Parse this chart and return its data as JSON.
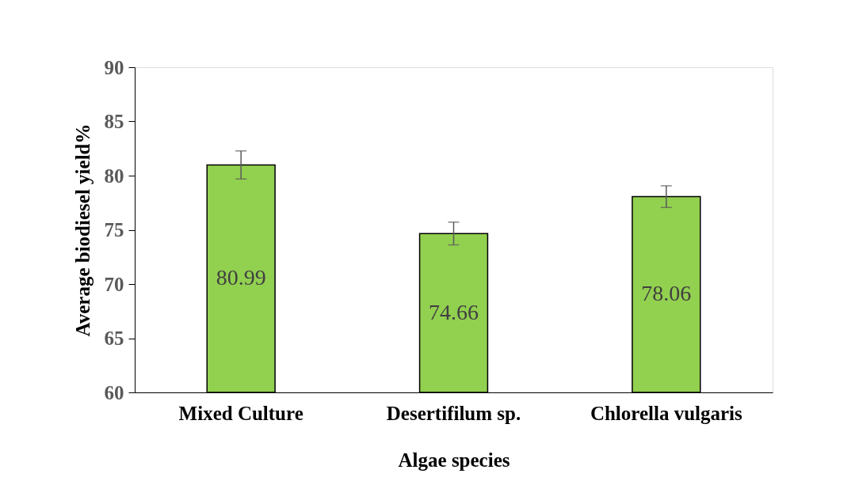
{
  "chart_data": {
    "type": "bar",
    "xlabel": "Algae species",
    "ylabel": "Average biodiesel yield%",
    "categories": [
      "Mixed Culture",
      "Desertifilum sp.",
      "Chlorella vulgaris"
    ],
    "values": [
      80.99,
      74.66,
      78.06
    ],
    "errors": [
      1.3,
      1.05,
      1.0
    ],
    "color": "#92d050",
    "ylim": [
      60,
      90
    ],
    "yticks": [
      60,
      65,
      70,
      75,
      80,
      85,
      90
    ],
    "grid": false,
    "data_labels": true
  }
}
